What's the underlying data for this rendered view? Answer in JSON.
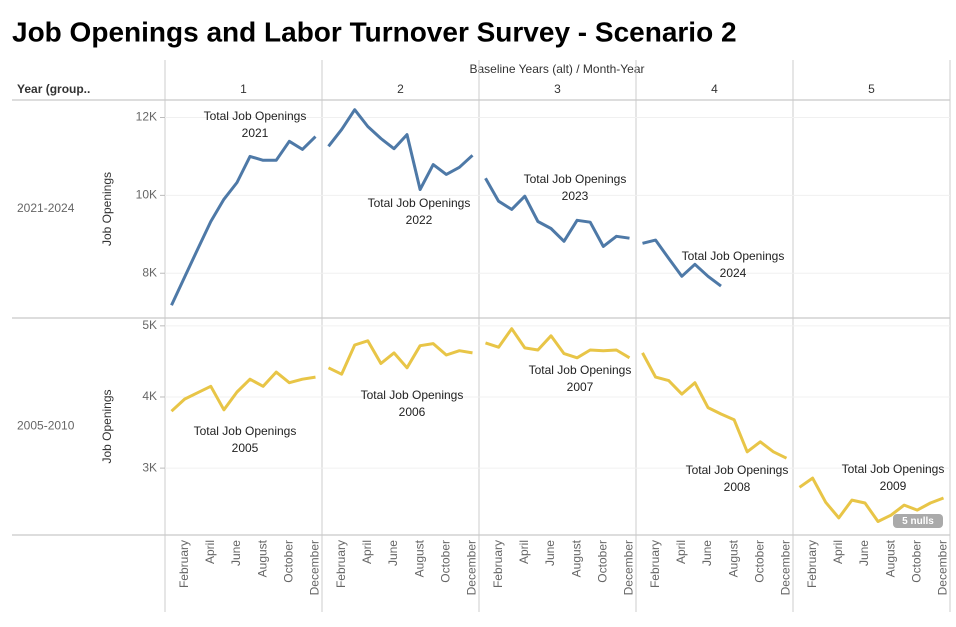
{
  "chart_data": {
    "type": "line",
    "title": "Job Openings and Labor Turnover Survey - Scenario 2",
    "x_axis_title": "Baseline Years (alt) / Month-Year",
    "row_header": "Year (group..",
    "columns": [
      "1",
      "2",
      "3",
      "4",
      "5"
    ],
    "categories": [
      null,
      "February",
      null,
      "April",
      null,
      "June",
      null,
      "August",
      null,
      "October",
      null,
      "December"
    ],
    "y_label": "Job Openings",
    "null_note": "5 nulls",
    "grid": true,
    "rows": [
      {
        "name": "2021-2024",
        "color": "#4e79a7",
        "ylim": [
          6850,
          12450
        ],
        "yticks": [
          {
            "value": 8000,
            "label": "8K"
          },
          {
            "value": 10000,
            "label": "10K"
          },
          {
            "value": 12000,
            "label": "12K"
          }
        ],
        "panels": [
          {
            "label": "Total Job Openings",
            "year": "2021",
            "values": [
              7180,
              7900,
              8620,
              9330,
              9900,
              10330,
              11000,
              10900,
              10900,
              11390,
              11180,
              11510
            ]
          },
          {
            "label": "Total Job Openings",
            "year": "2022",
            "values": [
              11260,
              11690,
              12200,
              11770,
              11460,
              11200,
              11560,
              10150,
              10790,
              10540,
              10720,
              11030
            ]
          },
          {
            "label": "Total Job Openings",
            "year": "2023",
            "values": [
              10440,
              9850,
              9640,
              9980,
              9330,
              9150,
              8820,
              9360,
              9310,
              8690,
              8950,
              8900
            ]
          },
          {
            "label": "Total Job Openings",
            "year": "2024",
            "values": [
              8770,
              8850,
              8380,
              7920,
              8230,
              7920,
              7670,
              null,
              null,
              null,
              null,
              null
            ]
          }
        ]
      },
      {
        "name": "2005-2010",
        "color": "#e8c547",
        "ylim": [
          2060,
          5110
        ],
        "yticks": [
          {
            "value": 3000,
            "label": "3K"
          },
          {
            "value": 4000,
            "label": "4K"
          },
          {
            "value": 5000,
            "label": "5K"
          }
        ],
        "panels": [
          {
            "label": "Total Job Openings",
            "year": "2005",
            "values": [
              3800,
              3970,
              4060,
              4150,
              3820,
              4070,
              4250,
              4150,
              4350,
              4200,
              4250,
              4280
            ]
          },
          {
            "label": "Total Job Openings",
            "year": "2006",
            "values": [
              4410,
              4320,
              4730,
              4790,
              4470,
              4620,
              4410,
              4720,
              4750,
              4590,
              4650,
              4620
            ]
          },
          {
            "label": "Total Job Openings",
            "year": "2007",
            "values": [
              4760,
              4700,
              4960,
              4690,
              4660,
              4860,
              4610,
              4550,
              4660,
              4650,
              4660,
              4550
            ]
          },
          {
            "label": "Total Job Openings",
            "year": "2008",
            "values": [
              4620,
              4280,
              4230,
              4040,
              4200,
              3850,
              3760,
              3680,
              3230,
              3370,
              3230,
              3140
            ]
          },
          {
            "label": "Total Job Openings",
            "year": "2009",
            "values": [
              2730,
              2860,
              2520,
              2300,
              2550,
              2510,
              2250,
              2340,
              2480,
              2410,
              2510,
              2580
            ]
          }
        ]
      }
    ]
  }
}
